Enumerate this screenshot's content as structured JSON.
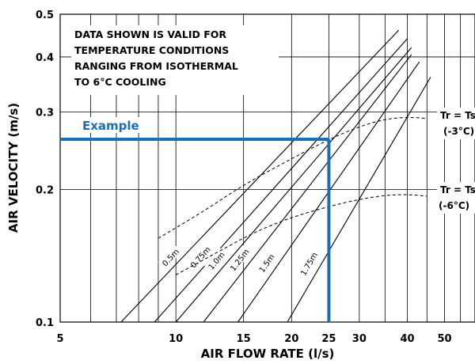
{
  "chart_data": {
    "type": "line",
    "xlabel": "AIR FLOW RATE (l/s)",
    "ylabel": "AIR VELOCITY (m/s)",
    "x_scale": "log",
    "y_scale": "log",
    "xlim": [
      5,
      60
    ],
    "ylim": [
      0.1,
      0.5
    ],
    "x_ticks": [
      {
        "value": 5,
        "label": "5"
      },
      {
        "value": 10,
        "label": "10"
      },
      {
        "value": 15,
        "label": "15"
      },
      {
        "value": 20,
        "label": "20"
      },
      {
        "value": 25,
        "label": "25"
      },
      {
        "value": 30,
        "label": "30"
      },
      {
        "value": 40,
        "label": "40"
      },
      {
        "value": 50,
        "label": "50"
      }
    ],
    "x_gridlines": [
      5,
      6,
      7,
      8,
      9,
      10,
      15,
      20,
      25,
      30,
      35,
      40,
      45,
      50,
      55,
      60
    ],
    "y_ticks": [
      {
        "value": 0.1,
        "label": "0.1"
      },
      {
        "value": 0.2,
        "label": "0.2"
      },
      {
        "value": 0.3,
        "label": "0.3"
      },
      {
        "value": 0.4,
        "label": "0.4"
      },
      {
        "value": 0.5,
        "label": "0.5"
      }
    ],
    "grid": true,
    "note_lines": [
      "DATA SHOWN IS VALID FOR",
      "TEMPERATURE CONDITIONS",
      "RANGING FROM ISOTHERMAL",
      "TO 6°C COOLING"
    ],
    "series": [
      {
        "name": "0.5m",
        "points": [
          [
            7.2,
            0.1
          ],
          [
            38,
            0.46
          ]
        ]
      },
      {
        "name": "0.75m",
        "points": [
          [
            8.8,
            0.1
          ],
          [
            40,
            0.44
          ]
        ]
      },
      {
        "name": "1.0m",
        "points": [
          [
            10,
            0.1
          ],
          [
            41,
            0.42
          ]
        ]
      },
      {
        "name": "1.25m",
        "points": [
          [
            11.8,
            0.1
          ],
          [
            41,
            0.405
          ]
        ]
      },
      {
        "name": "1.5m",
        "points": [
          [
            14.5,
            0.1
          ],
          [
            43,
            0.39
          ]
        ]
      },
      {
        "name": "1.75m",
        "points": [
          [
            19.5,
            0.1
          ],
          [
            46,
            0.36
          ]
        ]
      }
    ],
    "boundaries": [
      {
        "label_lines": [
          "Tr = Ts",
          "(-3°C)"
        ],
        "points": [
          [
            9,
            0.155
          ],
          [
            12,
            0.18
          ],
          [
            15,
            0.205
          ],
          [
            20,
            0.235
          ],
          [
            25,
            0.26
          ],
          [
            30,
            0.278
          ],
          [
            35,
            0.289
          ],
          [
            40,
            0.292
          ],
          [
            45,
            0.29
          ]
        ]
      },
      {
        "label_lines": [
          "Tr = Ts",
          "(-6°C)"
        ],
        "points": [
          [
            10,
            0.128
          ],
          [
            13,
            0.145
          ],
          [
            16,
            0.16
          ],
          [
            20,
            0.173
          ],
          [
            25,
            0.183
          ],
          [
            30,
            0.19
          ],
          [
            35,
            0.194
          ],
          [
            40,
            0.195
          ],
          [
            45,
            0.193
          ]
        ]
      }
    ],
    "example": {
      "label": "Example",
      "x": 25,
      "y": 0.26,
      "color": "#1a6fb5"
    }
  }
}
